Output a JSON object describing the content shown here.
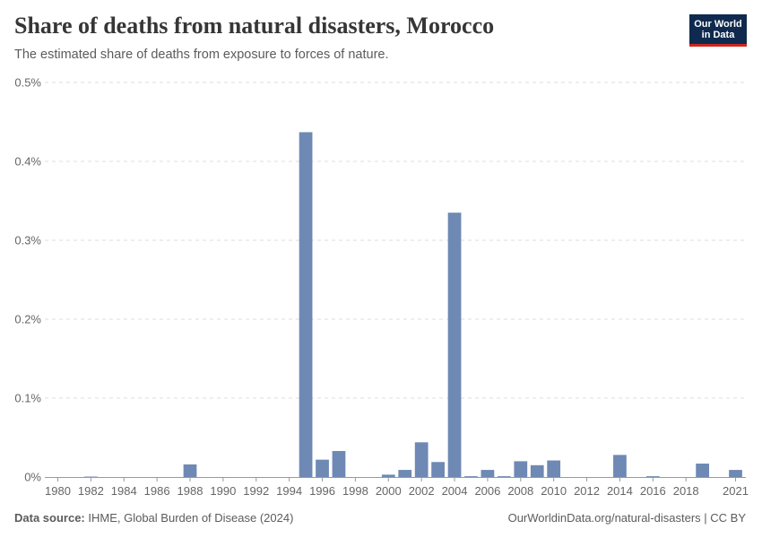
{
  "header": {
    "title": "Share of deaths from natural disasters, Morocco",
    "subtitle": "The estimated share of deaths from exposure to forces of nature."
  },
  "logo": {
    "line1": "Our World",
    "line2": "in Data"
  },
  "footer": {
    "source_label": "Data source:",
    "source_text": "IHME, Global Burden of Disease (2024)",
    "url_text": "OurWorldinData.org/natural-disasters | CC BY"
  },
  "colors": {
    "bar": "#6e89b4",
    "grid": "#dddddd",
    "axis": "#999999"
  },
  "chart_data": {
    "type": "bar",
    "title": "Share of deaths from natural disasters, Morocco",
    "xlabel": "",
    "ylabel": "",
    "unit": "%",
    "ylim": [
      0,
      0.5
    ],
    "yticks": [
      0,
      0.1,
      0.2,
      0.3,
      0.4,
      0.5
    ],
    "ytick_labels": [
      "0%",
      "0.1%",
      "0.2%",
      "0.3%",
      "0.4%",
      "0.5%"
    ],
    "xticks": [
      1980,
      1982,
      1984,
      1986,
      1988,
      1990,
      1992,
      1994,
      1996,
      1998,
      2000,
      2002,
      2004,
      2006,
      2008,
      2010,
      2012,
      2014,
      2016,
      2018,
      2021
    ],
    "categories": [
      1980,
      1981,
      1982,
      1983,
      1984,
      1985,
      1986,
      1987,
      1988,
      1989,
      1990,
      1991,
      1992,
      1993,
      1994,
      1995,
      1996,
      1997,
      1998,
      1999,
      2000,
      2001,
      2002,
      2003,
      2004,
      2005,
      2006,
      2007,
      2008,
      2009,
      2010,
      2011,
      2012,
      2013,
      2014,
      2015,
      2016,
      2017,
      2018,
      2019,
      2020,
      2021
    ],
    "values": [
      0,
      0,
      0.0005,
      0,
      0,
      0,
      0,
      0,
      0.016,
      0,
      0,
      0,
      0,
      0,
      0,
      0.437,
      0.022,
      0.033,
      0,
      0,
      0.003,
      0.009,
      0.044,
      0.019,
      0.335,
      0.001,
      0.009,
      0.001,
      0.02,
      0.015,
      0.021,
      0,
      0,
      0,
      0.028,
      0,
      0.001,
      0,
      0,
      0.017,
      0,
      0.009
    ],
    "grid": true
  }
}
